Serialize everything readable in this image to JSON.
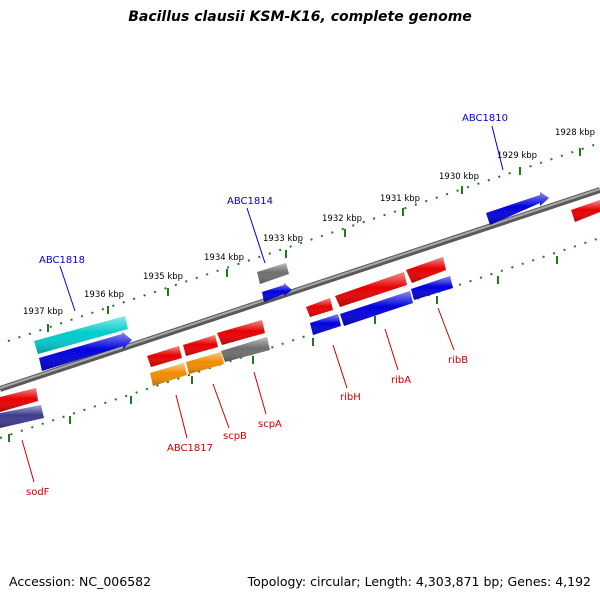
{
  "title": "Bacillus clausii KSM-K16, complete genome",
  "accession_text": "Accession: NC_006582",
  "topology_text": "Topology: circular; Length: 4,303,871 bp; Genes: 4,192",
  "colors": {
    "backbone": "#858585",
    "tick": "#1f7a1f",
    "red_gene": "#e60000",
    "blue_gene": "#0000dd",
    "cyan_gene": "#00cccc",
    "orange_gene": "#f08c00",
    "gray_gene": "#6e6e6e",
    "navy_gene": "#3e3a8f",
    "blue_label": "#0000cc",
    "red_label": "#cc0000"
  },
  "ticks": [
    "1928 kbp",
    "1929 kbp",
    "1930 kbp",
    "1931 kbp",
    "1932 kbp",
    "1933 kbp",
    "1934 kbp",
    "1935 kbp",
    "1936 kbp",
    "1937 kbp"
  ],
  "top_genes": [
    "ABC1810",
    "ABC1814",
    "ABC1818"
  ],
  "bottom_genes": [
    "sodF",
    "ABC1817",
    "scpB",
    "scpA",
    "ribH",
    "ribA",
    "ribB"
  ]
}
